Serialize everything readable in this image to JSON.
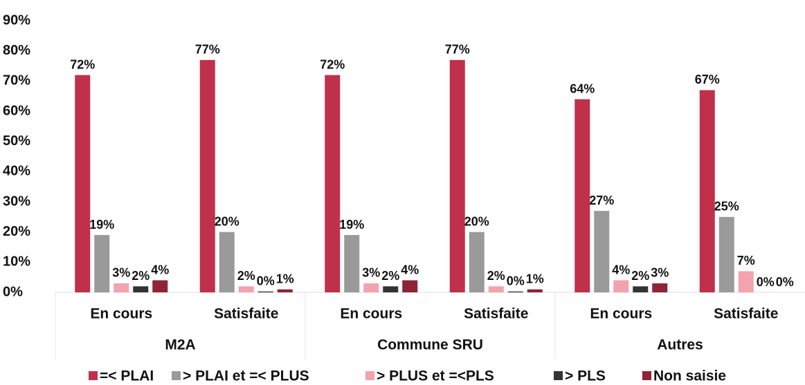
{
  "chart_data": {
    "type": "bar",
    "categories": [
      "En cours",
      "Satisfaite",
      "En cours",
      "Satisfaite",
      "En cours",
      "Satisfaite"
    ],
    "groups": [
      "M2A",
      "Commune SRU",
      "Autres"
    ],
    "series": [
      {
        "name": "=< PLAI",
        "color": "#c0304a",
        "values": [
          72,
          77,
          72,
          77,
          64,
          67
        ],
        "value_labels": [
          "72%",
          "77%",
          "72%",
          "77%",
          "64%",
          "67%"
        ]
      },
      {
        "name": "> PLAI et =< PLUS",
        "color": "#9a9a9a",
        "values": [
          19,
          20,
          19,
          20,
          27,
          25
        ],
        "value_labels": [
          "19%",
          "20%",
          "19%",
          "20%",
          "27%",
          "25%"
        ]
      },
      {
        "name": "> PLUS et =<PLS",
        "color": "#f2a3ae",
        "values": [
          3,
          2,
          3,
          2,
          4,
          7
        ],
        "value_labels": [
          "3%",
          "2%",
          "3%",
          "2%",
          "4%",
          "7%"
        ]
      },
      {
        "name": "> PLS",
        "color": "#333333",
        "values": [
          2,
          0.3,
          2,
          0.3,
          2,
          0
        ],
        "value_labels": [
          "2%",
          "0%",
          "2%",
          "0%",
          "2%",
          "0%"
        ]
      },
      {
        "name": "Non saisie",
        "color": "#8e2435",
        "values": [
          4,
          1,
          4,
          1,
          3,
          0
        ],
        "value_labels": [
          "4%",
          "1%",
          "4%",
          "1%",
          "3%",
          "0%"
        ]
      }
    ],
    "ylim": [
      0,
      90
    ],
    "yticks": [
      {
        "value": 0,
        "label": "0%"
      },
      {
        "value": 10,
        "label": "10%"
      },
      {
        "value": 20,
        "label": "20%"
      },
      {
        "value": 30,
        "label": "30%"
      },
      {
        "value": 40,
        "label": "40%"
      },
      {
        "value": 50,
        "label": "50%"
      },
      {
        "value": 60,
        "label": "60%"
      },
      {
        "value": 70,
        "label": "70%"
      },
      {
        "value": 80,
        "label": "80%"
      },
      {
        "value": 90,
        "label": "90%"
      }
    ],
    "grid": false,
    "legend": "bottom"
  }
}
